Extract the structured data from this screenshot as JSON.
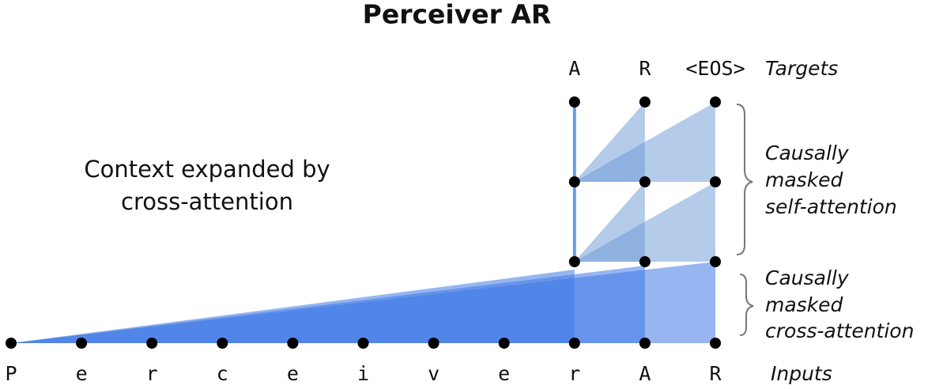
{
  "header": {
    "title": "Perceiver AR"
  },
  "targets": {
    "label": "Targets",
    "tokens": [
      "A",
      "R",
      "<EOS>"
    ]
  },
  "inputs": {
    "label": "Inputs",
    "tokens": [
      "P",
      "e",
      "r",
      "c",
      "e",
      "i",
      "v",
      "e",
      "r",
      "A",
      "R"
    ]
  },
  "annotations": {
    "context": [
      "Context expanded by",
      "cross-attention"
    ],
    "self_attention": [
      "Causally",
      "masked",
      "self-attention"
    ],
    "cross_attention": [
      "Causally",
      "masked",
      "cross-attention"
    ]
  }
}
